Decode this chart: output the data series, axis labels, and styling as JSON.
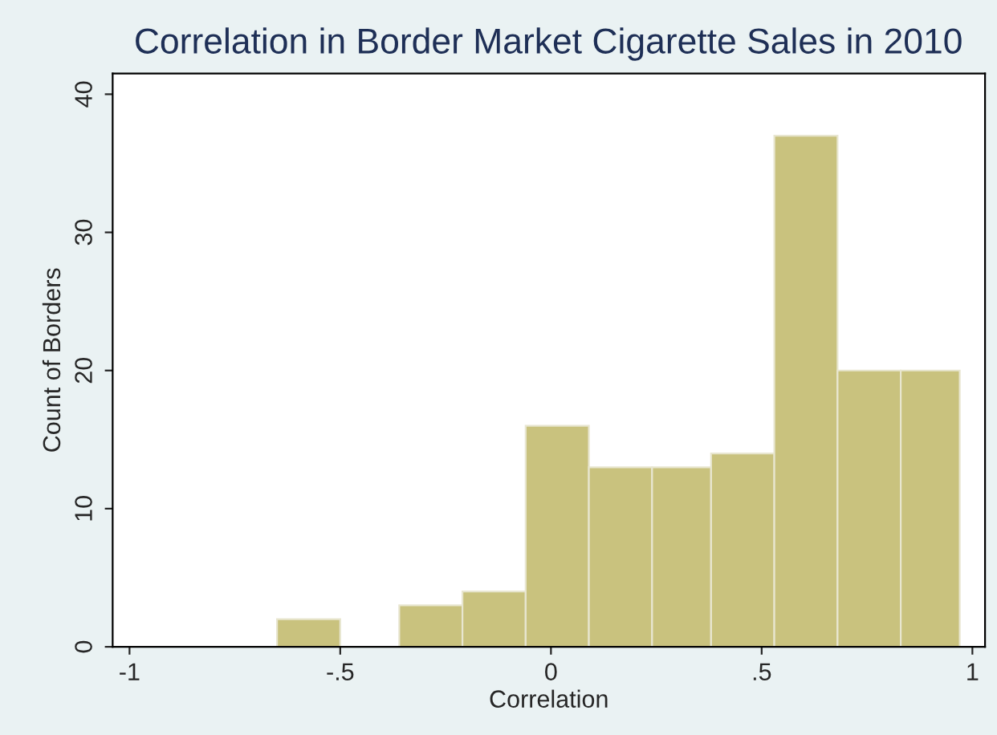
{
  "chart_data": {
    "type": "histogram",
    "title": "Correlation in Border Market Cigarette Sales in 2010",
    "xlabel": "Correlation",
    "ylabel": "Count of Borders",
    "bins": [
      -0.65,
      -0.5,
      -0.36,
      -0.21,
      -0.06,
      0.09,
      0.24,
      0.38,
      0.53,
      0.68,
      0.83,
      0.97
    ],
    "values": [
      2,
      0,
      3,
      4,
      16,
      13,
      13,
      14,
      37,
      20,
      20
    ],
    "color": "#c9c27e",
    "xlim": [
      -1.04,
      1.03
    ],
    "xticks": [
      {
        "value": -1,
        "label": "-1"
      },
      {
        "value": -0.5,
        "label": "-.5"
      },
      {
        "value": 0,
        "label": "0"
      },
      {
        "value": 0.5,
        "label": ".5"
      },
      {
        "value": 1,
        "label": "1"
      }
    ],
    "ylim": [
      0,
      41.5
    ],
    "yticks": [
      0,
      10,
      20,
      30,
      40
    ],
    "grid": false
  }
}
